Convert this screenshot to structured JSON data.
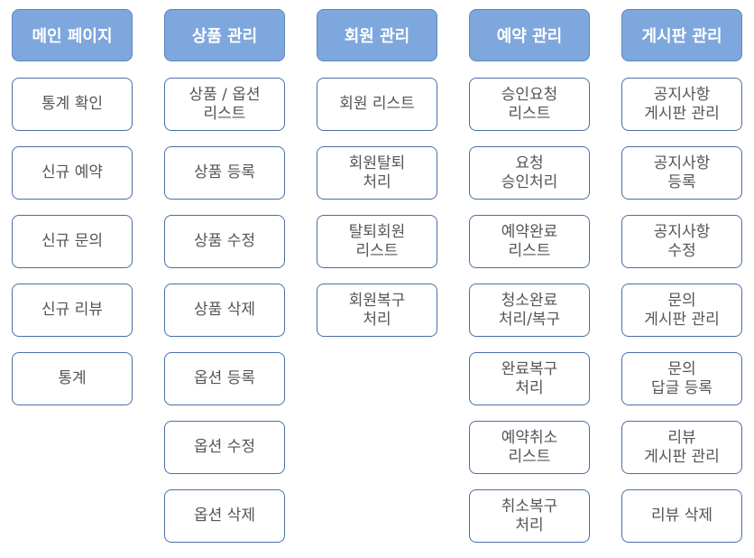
{
  "menus": [
    {
      "title": "메인 페이지",
      "items": [
        "통계 확인",
        "신규 예약",
        "신규 문의",
        "신규 리뷰",
        "통계"
      ]
    },
    {
      "title": "상품 관리",
      "items": [
        "상품 / 옵션\n리스트",
        "상품 등록",
        "상품 수정",
        "상품 삭제",
        "옵션 등록",
        "옵션 수정",
        "옵션 삭제"
      ]
    },
    {
      "title": "회원 관리",
      "items": [
        "회원 리스트",
        "회원탈퇴\n처리",
        "탈퇴회원\n리스트",
        "회원복구\n처리"
      ]
    },
    {
      "title": "예약 관리",
      "items": [
        "승인요청\n리스트",
        "요청\n승인처리",
        "예약완료\n리스트",
        "청소완료\n처리/복구",
        "완료복구\n처리",
        "예약취소\n리스트",
        "취소복구\n처리"
      ]
    },
    {
      "title": "게시판 관리",
      "items": [
        "공지사항\n게시판 관리",
        "공지사항\n등록",
        "공지사항\n수정",
        "문의\n게시판 관리",
        "문의\n답글 등록",
        "리뷰\n게시판 관리",
        "리뷰 삭제"
      ]
    }
  ]
}
